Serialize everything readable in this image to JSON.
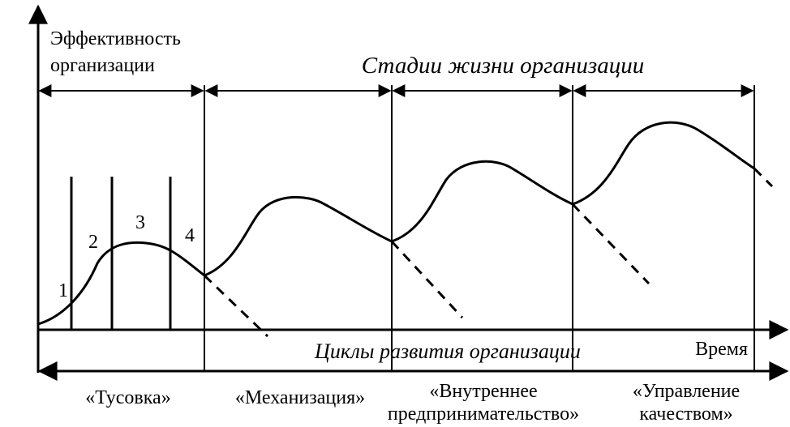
{
  "y_axis_label": [
    "Эффективность",
    "организации"
  ],
  "stages_title": "Стадии жизни организации",
  "cycle_numbers": [
    "1",
    "2",
    "3",
    "4"
  ],
  "x_axis_label": "Время",
  "cycles_title": "Циклы развития организации",
  "stage_labels": [
    [
      "«Тусовка»"
    ],
    [
      "«Механизация»"
    ],
    [
      "«Внутреннее",
      "предпринимательство»"
    ],
    [
      "«Управление",
      "качеством»"
    ]
  ]
}
